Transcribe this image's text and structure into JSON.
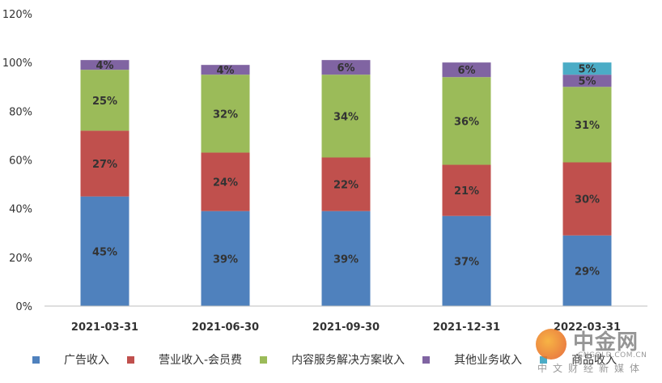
{
  "chart_data": {
    "type": "bar",
    "stacked": true,
    "categories": [
      "2021-03-31",
      "2021-06-30",
      "2021-09-30",
      "2021-12-31",
      "2022-03-31"
    ],
    "ylim": [
      0,
      120
    ],
    "yticks": [
      "0%",
      "20%",
      "40%",
      "60%",
      "80%",
      "100%",
      "120%"
    ],
    "grid": false,
    "legend_position": "bottom",
    "series": [
      {
        "name": "广告收入",
        "color": "#4F81BD",
        "values": [
          45,
          39,
          39,
          37,
          29
        ],
        "labels": [
          "45%",
          "39%",
          "39%",
          "37%",
          "29%"
        ]
      },
      {
        "name": "营业收入-会员费",
        "color": "#C0504D",
        "values": [
          27,
          24,
          22,
          21,
          30
        ],
        "labels": [
          "27%",
          "24%",
          "22%",
          "21%",
          "30%"
        ]
      },
      {
        "name": "内容服务解决方案收入",
        "color": "#9BBB59",
        "values": [
          25,
          32,
          34,
          36,
          31
        ],
        "labels": [
          "25%",
          "32%",
          "34%",
          "36%",
          "31%"
        ]
      },
      {
        "name": "其他业务收入",
        "color": "#8064A2",
        "values": [
          4,
          4,
          6,
          6,
          5
        ],
        "labels": [
          "4%",
          "4%",
          "6%",
          "6%",
          "5%"
        ]
      },
      {
        "name": "商品收入",
        "color": "#4BACC6",
        "values": [
          0,
          0,
          0,
          0,
          5
        ],
        "labels": [
          "",
          "",
          "",
          "",
          "5%"
        ]
      }
    ]
  },
  "watermark": {
    "name": "中金网",
    "url": "CNGOLD.COM.CN",
    "sub": "中文财经新媒体"
  }
}
